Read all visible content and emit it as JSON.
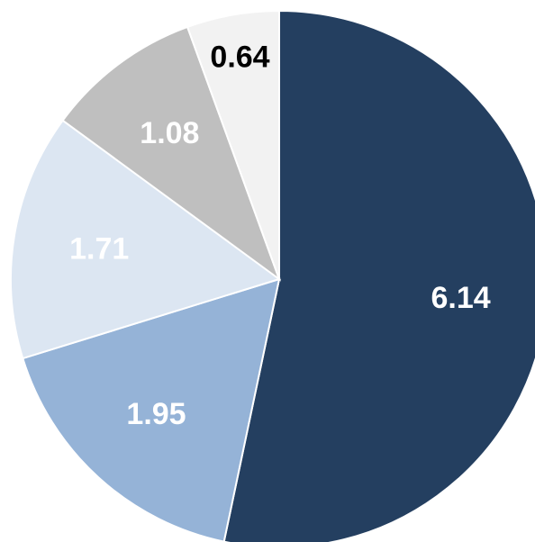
{
  "chart_data": {
    "type": "pie",
    "title": "",
    "start_angle_deg": 0,
    "direction": "clockwise",
    "legend": "none",
    "slices": [
      {
        "label": "6.14",
        "value": 6.14,
        "color": "#243f60",
        "label_color": "#ffffff"
      },
      {
        "label": "1.95",
        "value": 1.95,
        "color": "#95b3d7",
        "label_color": "#ffffff"
      },
      {
        "label": "1.71",
        "value": 1.71,
        "color": "#dce6f2",
        "label_color": "#ffffff"
      },
      {
        "label": "1.08",
        "value": 1.08,
        "color": "#bfbfbf",
        "label_color": "#ffffff"
      },
      {
        "label": "0.64",
        "value": 0.64,
        "color": "#f2f2f2",
        "label_color": "#000000"
      }
    ]
  }
}
